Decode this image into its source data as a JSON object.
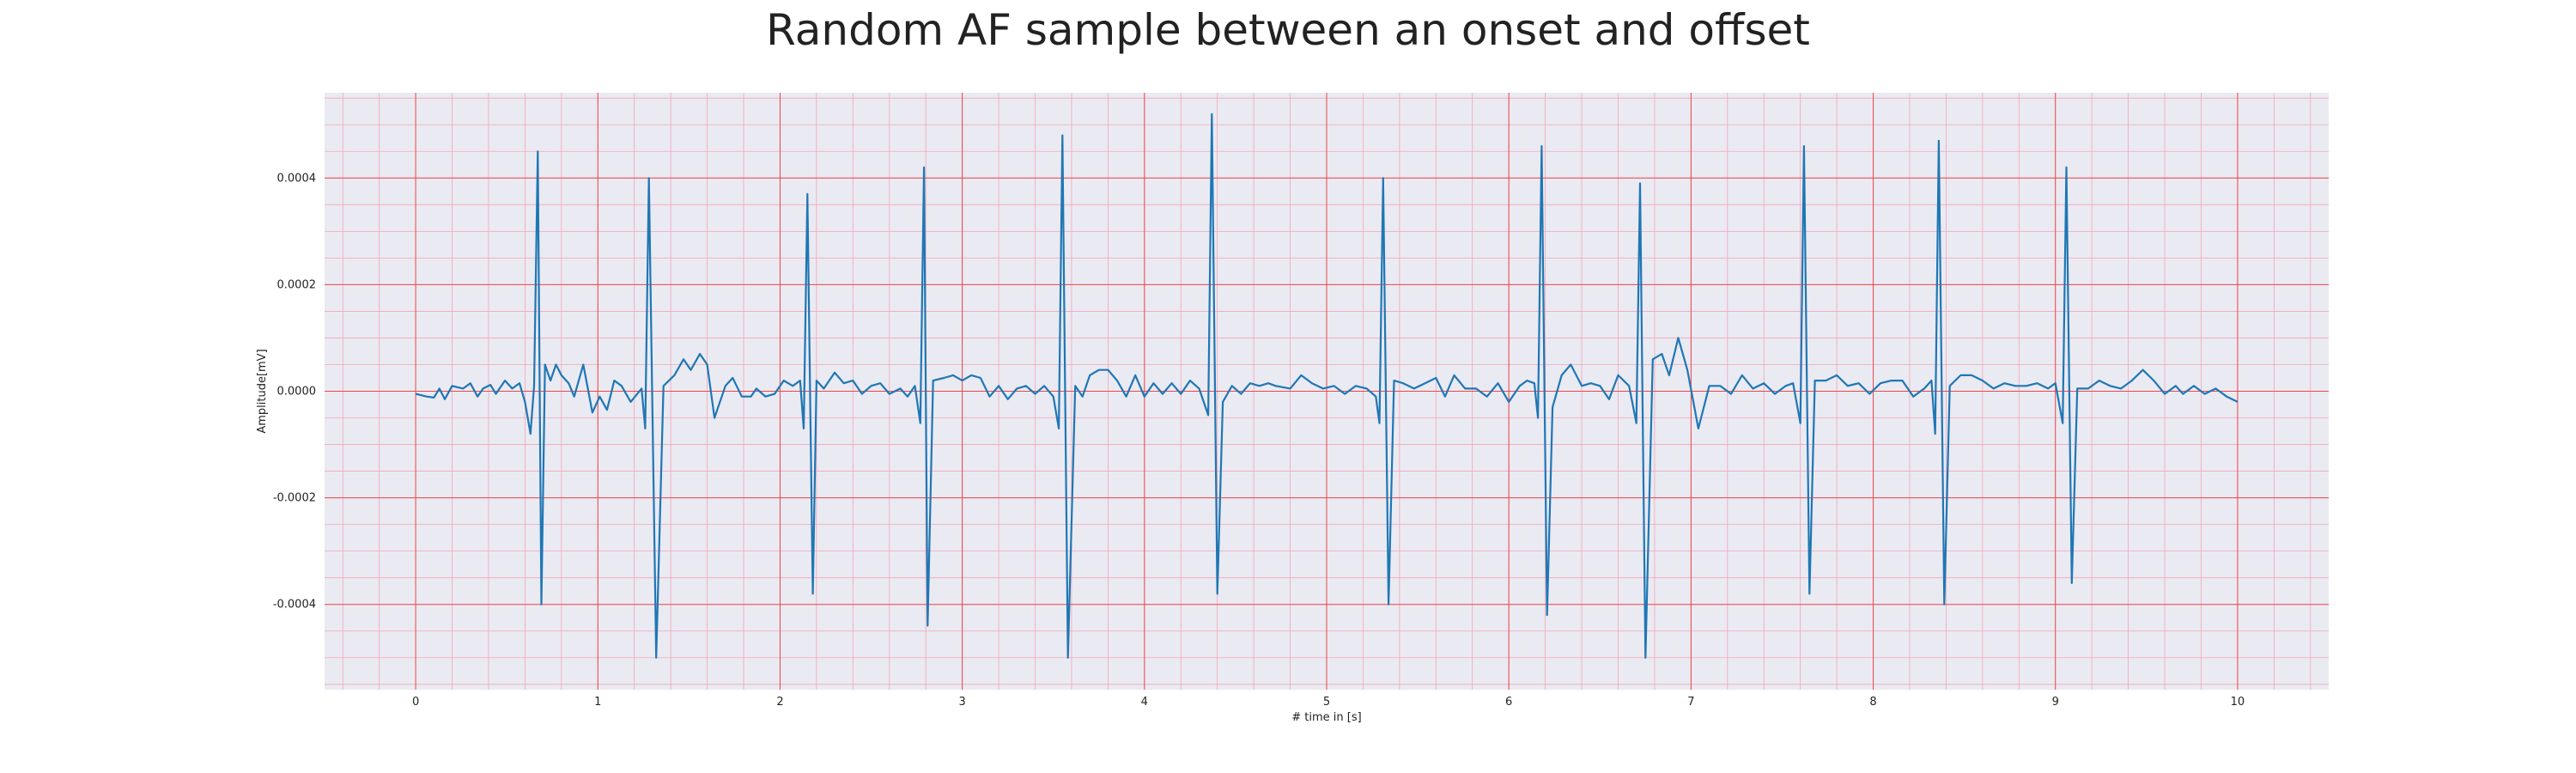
{
  "chart_data": {
    "type": "line",
    "title": "Random AF sample between an onset and offset",
    "xlabel": "# time in [s]",
    "ylabel": "Amplitude[mV]",
    "xlim": [
      -0.5,
      10.5
    ],
    "ylim": [
      -0.00056,
      0.00056
    ],
    "x_ticks": [
      0,
      1,
      2,
      3,
      4,
      5,
      6,
      7,
      8,
      9,
      10
    ],
    "x_tick_labels": [
      "0",
      "1",
      "2",
      "3",
      "4",
      "5",
      "6",
      "7",
      "8",
      "9",
      "10"
    ],
    "y_ticks": [
      -0.0004,
      -0.0002,
      0.0,
      0.0002,
      0.0004
    ],
    "y_tick_labels": [
      "-0.0004",
      "-0.0002",
      "0.0000",
      "0.0002",
      "0.0004"
    ],
    "grid": "major and minor",
    "colors": {
      "line": "#1f77b4",
      "plot_background": "#eaeaf2",
      "major_grid": "#e8484a",
      "minor_grid": "#f2a6b6"
    },
    "series": [
      {
        "color": "#1f77b4",
        "points": [
          [
            0,
            -5e-06
          ],
          [
            0.06,
            -1e-05
          ],
          [
            0.1,
            -1.2e-05
          ],
          [
            0.13,
            5e-06
          ],
          [
            0.16,
            -1.5e-05
          ],
          [
            0.2,
            1e-05
          ],
          [
            0.26,
            5e-06
          ],
          [
            0.3,
            1.5e-05
          ],
          [
            0.34,
            -1e-05
          ],
          [
            0.37,
            5e-06
          ],
          [
            0.41,
            1.2e-05
          ],
          [
            0.44,
            -5e-06
          ],
          [
            0.49,
            2e-05
          ],
          [
            0.53,
            5e-06
          ],
          [
            0.57,
            1.5e-05
          ],
          [
            0.6,
            -2e-05
          ],
          [
            0.63,
            -8e-05
          ],
          [
            0.65,
            1e-05
          ],
          [
            0.67,
            0.00045
          ],
          [
            0.69,
            -0.0004
          ],
          [
            0.71,
            5e-05
          ],
          [
            0.74,
            2e-05
          ],
          [
            0.77,
            5e-05
          ],
          [
            0.8,
            3e-05
          ],
          [
            0.84,
            1.5e-05
          ],
          [
            0.87,
            -1e-05
          ],
          [
            0.92,
            5e-05
          ],
          [
            0.97,
            -4e-05
          ],
          [
            1.01,
            -1e-05
          ],
          [
            1.05,
            -3.5e-05
          ],
          [
            1.09,
            2e-05
          ],
          [
            1.13,
            1e-05
          ],
          [
            1.18,
            -2e-05
          ],
          [
            1.24,
            5e-06
          ],
          [
            1.26,
            -7e-05
          ],
          [
            1.28,
            0.0004
          ],
          [
            1.32,
            -0.0005
          ],
          [
            1.36,
            1e-05
          ],
          [
            1.42,
            3e-05
          ],
          [
            1.47,
            6e-05
          ],
          [
            1.51,
            4e-05
          ],
          [
            1.56,
            7e-05
          ],
          [
            1.6,
            5e-05
          ],
          [
            1.64,
            -5e-05
          ],
          [
            1.7,
            1e-05
          ],
          [
            1.74,
            2.5e-05
          ],
          [
            1.79,
            -1e-05
          ],
          [
            1.84,
            -1e-05
          ],
          [
            1.87,
            5e-06
          ],
          [
            1.92,
            -1e-05
          ],
          [
            1.97,
            -5e-06
          ],
          [
            2.02,
            2e-05
          ],
          [
            2.07,
            1e-05
          ],
          [
            2.11,
            2e-05
          ],
          [
            2.13,
            -7e-05
          ],
          [
            2.15,
            0.00037
          ],
          [
            2.18,
            -0.00038
          ],
          [
            2.2,
            2e-05
          ],
          [
            2.24,
            5e-06
          ],
          [
            2.3,
            3.5e-05
          ],
          [
            2.35,
            1.5e-05
          ],
          [
            2.4,
            2e-05
          ],
          [
            2.45,
            -5e-06
          ],
          [
            2.5,
            1e-05
          ],
          [
            2.55,
            1.5e-05
          ],
          [
            2.6,
            -5e-06
          ],
          [
            2.66,
            5e-06
          ],
          [
            2.7,
            -1e-05
          ],
          [
            2.74,
            1e-05
          ],
          [
            2.77,
            -6e-05
          ],
          [
            2.79,
            0.00042
          ],
          [
            2.81,
            -0.00044
          ],
          [
            2.84,
            2e-05
          ],
          [
            2.9,
            2.5e-05
          ],
          [
            2.95,
            3e-05
          ],
          [
            3.0,
            2e-05
          ],
          [
            3.05,
            3e-05
          ],
          [
            3.1,
            2.5e-05
          ],
          [
            3.15,
            -1e-05
          ],
          [
            3.2,
            1e-05
          ],
          [
            3.25,
            -1.5e-05
          ],
          [
            3.3,
            5e-06
          ],
          [
            3.35,
            1e-05
          ],
          [
            3.4,
            -5e-06
          ],
          [
            3.45,
            1e-05
          ],
          [
            3.5,
            -1e-05
          ],
          [
            3.53,
            -7e-05
          ],
          [
            3.55,
            0.00048
          ],
          [
            3.58,
            -0.0005
          ],
          [
            3.62,
            1e-05
          ],
          [
            3.66,
            -1e-05
          ],
          [
            3.7,
            3e-05
          ],
          [
            3.75,
            4e-05
          ],
          [
            3.8,
            4e-05
          ],
          [
            3.85,
            2e-05
          ],
          [
            3.9,
            -1e-05
          ],
          [
            3.95,
            3e-05
          ],
          [
            4.0,
            -1e-05
          ],
          [
            4.05,
            1.5e-05
          ],
          [
            4.1,
            -5e-06
          ],
          [
            4.15,
            1.5e-05
          ],
          [
            4.2,
            -5e-06
          ],
          [
            4.25,
            2e-05
          ],
          [
            4.3,
            5e-06
          ],
          [
            4.35,
            -4.5e-05
          ],
          [
            4.37,
            0.00052
          ],
          [
            4.4,
            -0.00038
          ],
          [
            4.43,
            -2e-05
          ],
          [
            4.48,
            1e-05
          ],
          [
            4.53,
            -5e-06
          ],
          [
            4.58,
            1.5e-05
          ],
          [
            4.63,
            1e-05
          ],
          [
            4.68,
            1.5e-05
          ],
          [
            4.72,
            1e-05
          ],
          [
            4.8,
            5e-06
          ],
          [
            4.86,
            3e-05
          ],
          [
            4.92,
            1.5e-05
          ],
          [
            4.98,
            5e-06
          ],
          [
            5.04,
            1e-05
          ],
          [
            5.1,
            -5e-06
          ],
          [
            5.16,
            1e-05
          ],
          [
            5.22,
            5e-06
          ],
          [
            5.27,
            -1e-05
          ],
          [
            5.29,
            -6e-05
          ],
          [
            5.31,
            0.0004
          ],
          [
            5.34,
            -0.0004
          ],
          [
            5.37,
            2e-05
          ],
          [
            5.42,
            1.5e-05
          ],
          [
            5.48,
            5e-06
          ],
          [
            5.54,
            1.5e-05
          ],
          [
            5.6,
            2.5e-05
          ],
          [
            5.65,
            -1e-05
          ],
          [
            5.7,
            3e-05
          ],
          [
            5.76,
            5e-06
          ],
          [
            5.82,
            5e-06
          ],
          [
            5.88,
            -1e-05
          ],
          [
            5.94,
            1.5e-05
          ],
          [
            6.0,
            -2e-05
          ],
          [
            6.06,
            1e-05
          ],
          [
            6.1,
            2e-05
          ],
          [
            6.14,
            1.5e-05
          ],
          [
            6.16,
            -5e-05
          ],
          [
            6.18,
            0.00046
          ],
          [
            6.21,
            -0.00042
          ],
          [
            6.24,
            -3e-05
          ],
          [
            6.29,
            3e-05
          ],
          [
            6.34,
            5e-05
          ],
          [
            6.4,
            1e-05
          ],
          [
            6.45,
            1.5e-05
          ],
          [
            6.5,
            1e-05
          ],
          [
            6.55,
            -1.5e-05
          ],
          [
            6.6,
            3e-05
          ],
          [
            6.66,
            1e-05
          ],
          [
            6.7,
            -6e-05
          ],
          [
            6.72,
            0.00039
          ],
          [
            6.75,
            -0.0005
          ],
          [
            6.79,
            6e-05
          ],
          [
            6.84,
            7e-05
          ],
          [
            6.88,
            3e-05
          ],
          [
            6.93,
            0.0001
          ],
          [
            6.98,
            4e-05
          ],
          [
            7.04,
            -7e-05
          ],
          [
            7.1,
            1e-05
          ],
          [
            7.16,
            1e-05
          ],
          [
            7.22,
            -5e-06
          ],
          [
            7.28,
            3e-05
          ],
          [
            7.34,
            5e-06
          ],
          [
            7.4,
            1.5e-05
          ],
          [
            7.46,
            -5e-06
          ],
          [
            7.52,
            1e-05
          ],
          [
            7.56,
            1.5e-05
          ],
          [
            7.6,
            -6e-05
          ],
          [
            7.62,
            0.00046
          ],
          [
            7.65,
            -0.00038
          ],
          [
            7.68,
            2e-05
          ],
          [
            7.74,
            2e-05
          ],
          [
            7.8,
            3e-05
          ],
          [
            7.86,
            1e-05
          ],
          [
            7.92,
            1.5e-05
          ],
          [
            7.98,
            -5e-06
          ],
          [
            8.04,
            1.5e-05
          ],
          [
            8.1,
            2e-05
          ],
          [
            8.16,
            2e-05
          ],
          [
            8.22,
            -1e-05
          ],
          [
            8.28,
            5e-06
          ],
          [
            8.32,
            2e-05
          ],
          [
            8.34,
            -8e-05
          ],
          [
            8.36,
            0.00047
          ],
          [
            8.39,
            -0.0004
          ],
          [
            8.42,
            1e-05
          ],
          [
            8.48,
            3e-05
          ],
          [
            8.54,
            3e-05
          ],
          [
            8.6,
            2e-05
          ],
          [
            8.66,
            5e-06
          ],
          [
            8.72,
            1.5e-05
          ],
          [
            8.78,
            1e-05
          ],
          [
            8.84,
            1e-05
          ],
          [
            8.9,
            1.5e-05
          ],
          [
            8.96,
            5e-06
          ],
          [
            9.0,
            1.5e-05
          ],
          [
            9.04,
            -6e-05
          ],
          [
            9.06,
            0.00042
          ],
          [
            9.09,
            -0.00036
          ],
          [
            9.12,
            5e-06
          ],
          [
            9.18,
            5e-06
          ],
          [
            9.24,
            2e-05
          ],
          [
            9.3,
            1e-05
          ],
          [
            9.36,
            5e-06
          ],
          [
            9.42,
            2e-05
          ],
          [
            9.48,
            4e-05
          ],
          [
            9.54,
            2e-05
          ],
          [
            9.6,
            -5e-06
          ],
          [
            9.66,
            1e-05
          ],
          [
            9.7,
            -5e-06
          ],
          [
            9.76,
            1e-05
          ],
          [
            9.82,
            -5e-06
          ],
          [
            9.88,
            5e-06
          ],
          [
            9.94,
            -1e-05
          ],
          [
            10.0,
            -2e-05
          ]
        ]
      }
    ]
  }
}
